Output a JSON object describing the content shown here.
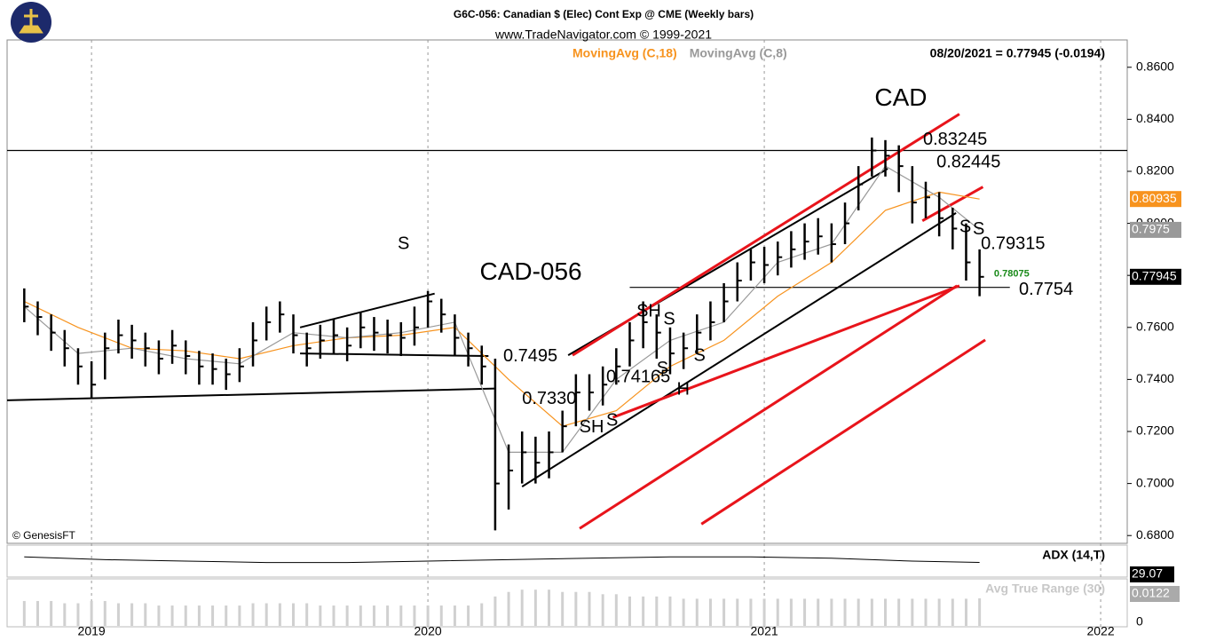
{
  "chart_data": {
    "type": "ohlc",
    "title": "G6C-056:  Canadian $ (Elec) Cont Exp @ CME  (Weekly bars)",
    "subtitle": "www.TradeNavigator.com © 1999-2021",
    "info": "08/20/2021 = 0.77945 (-0.0194)",
    "credit": "© GenesisFT",
    "xlim": [
      2018.749,
      2022.079
    ],
    "xticks": [
      2019,
      2020,
      2021,
      2022
    ],
    "ylim": [
      0.677,
      0.8705
    ],
    "yticks": [
      {
        "value": 0.86,
        "label": "0.8600"
      },
      {
        "value": 0.84,
        "label": "0.8400"
      },
      {
        "value": 0.82,
        "label": "0.8200"
      },
      {
        "value": 0.8,
        "label": "0.8000"
      },
      {
        "value": 0.78,
        "label": "0.7800"
      },
      {
        "value": 0.76,
        "label": "0.7600"
      },
      {
        "value": 0.74,
        "label": "0.7400"
      },
      {
        "value": 0.72,
        "label": "0.7200"
      },
      {
        "value": 0.7,
        "label": "0.7000"
      },
      {
        "value": 0.68,
        "label": "0.6800"
      }
    ],
    "x": [
      2018.8,
      2018.84,
      2018.88,
      2018.92,
      2018.96,
      2019,
      2019.04,
      2019.08,
      2019.12,
      2019.16,
      2019.2,
      2019.24,
      2019.28,
      2019.32,
      2019.36,
      2019.4,
      2019.44,
      2019.48,
      2019.52,
      2019.56,
      2019.6,
      2019.64,
      2019.68,
      2019.72,
      2019.76,
      2019.8,
      2019.84,
      2019.88,
      2019.92,
      2019.96,
      2020,
      2020.04,
      2020.08,
      2020.12,
      2020.16,
      2020.2,
      2020.24,
      2020.28,
      2020.32,
      2020.36,
      2020.4,
      2020.44,
      2020.48,
      2020.52,
      2020.56,
      2020.6,
      2020.64,
      2020.68,
      2020.72,
      2020.76,
      2020.8,
      2020.84,
      2020.88,
      2020.92,
      2020.96,
      2021,
      2021.04,
      2021.08,
      2021.12,
      2021.16,
      2021.2,
      2021.24,
      2021.28,
      2021.32,
      2021.36,
      2021.4,
      2021.44,
      2021.48,
      2021.52,
      2021.56,
      2021.6,
      2021.64
    ],
    "highs": [
      0.775,
      0.77,
      0.765,
      0.759,
      0.752,
      0.747,
      0.758,
      0.763,
      0.761,
      0.758,
      0.755,
      0.759,
      0.755,
      0.751,
      0.75,
      0.748,
      0.752,
      0.762,
      0.768,
      0.77,
      0.765,
      0.758,
      0.761,
      0.763,
      0.76,
      0.766,
      0.764,
      0.763,
      0.762,
      0.768,
      0.774,
      0.771,
      0.765,
      0.758,
      0.753,
      0.748,
      0.715,
      0.72,
      0.718,
      0.72,
      0.728,
      0.742,
      0.742,
      0.745,
      0.752,
      0.762,
      0.77,
      0.765,
      0.76,
      0.758,
      0.765,
      0.77,
      0.777,
      0.785,
      0.79,
      0.791,
      0.793,
      0.797,
      0.8,
      0.802,
      0.8,
      0.808,
      0.822,
      0.833,
      0.832,
      0.83,
      0.822,
      0.816,
      0.812,
      0.806,
      0.8,
      0.79
    ],
    "lows": [
      0.762,
      0.757,
      0.751,
      0.745,
      0.738,
      0.733,
      0.74,
      0.75,
      0.748,
      0.745,
      0.742,
      0.746,
      0.742,
      0.738,
      0.738,
      0.736,
      0.739,
      0.745,
      0.755,
      0.758,
      0.75,
      0.745,
      0.748,
      0.75,
      0.747,
      0.752,
      0.751,
      0.75,
      0.749,
      0.753,
      0.76,
      0.758,
      0.749,
      0.745,
      0.738,
      0.682,
      0.69,
      0.7,
      0.7,
      0.702,
      0.712,
      0.722,
      0.728,
      0.73,
      0.738,
      0.745,
      0.752,
      0.748,
      0.742,
      0.744,
      0.75,
      0.755,
      0.762,
      0.77,
      0.778,
      0.777,
      0.78,
      0.783,
      0.786,
      0.788,
      0.785,
      0.792,
      0.805,
      0.818,
      0.818,
      0.812,
      0.8,
      0.802,
      0.795,
      0.79,
      0.778,
      0.772
    ],
    "closes": [
      0.768,
      0.764,
      0.758,
      0.752,
      0.745,
      0.738,
      0.752,
      0.757,
      0.755,
      0.752,
      0.748,
      0.753,
      0.749,
      0.745,
      0.744,
      0.742,
      0.745,
      0.755,
      0.762,
      0.765,
      0.757,
      0.752,
      0.755,
      0.757,
      0.753,
      0.76,
      0.758,
      0.757,
      0.756,
      0.76,
      0.77,
      0.765,
      0.756,
      0.752,
      0.745,
      0.7,
      0.705,
      0.712,
      0.708,
      0.712,
      0.722,
      0.735,
      0.735,
      0.738,
      0.745,
      0.755,
      0.762,
      0.758,
      0.75,
      0.752,
      0.758,
      0.762,
      0.77,
      0.778,
      0.785,
      0.784,
      0.787,
      0.79,
      0.793,
      0.795,
      0.792,
      0.8,
      0.815,
      0.828,
      0.826,
      0.822,
      0.808,
      0.81,
      0.802,
      0.798,
      0.785,
      0.77945
    ],
    "color": "#000000",
    "series": [
      {
        "name": "MovingAvg (C,18)",
        "color": "#f7931e",
        "x": [
          2018.8,
          2018.96,
          2019.12,
          2019.28,
          2019.44,
          2019.6,
          2019.76,
          2019.92,
          2020.08,
          2020.24,
          2020.4,
          2020.56,
          2020.72,
          2020.88,
          2021.04,
          2021.2,
          2021.36,
          2021.52,
          2021.64
        ],
        "values": [
          0.77,
          0.76,
          0.752,
          0.751,
          0.748,
          0.753,
          0.756,
          0.757,
          0.76,
          0.74,
          0.722,
          0.728,
          0.745,
          0.755,
          0.772,
          0.785,
          0.805,
          0.812,
          0.80935
        ]
      },
      {
        "name": "MovingAvg (C,8)",
        "color": "#999999",
        "x": [
          2018.8,
          2018.96,
          2019.12,
          2019.28,
          2019.44,
          2019.6,
          2019.76,
          2019.92,
          2020.08,
          2020.24,
          2020.4,
          2020.56,
          2020.72,
          2020.88,
          2021.04,
          2021.2,
          2021.36,
          2021.52,
          2021.64
        ],
        "values": [
          0.768,
          0.75,
          0.752,
          0.748,
          0.746,
          0.758,
          0.756,
          0.758,
          0.762,
          0.712,
          0.712,
          0.74,
          0.755,
          0.762,
          0.785,
          0.792,
          0.822,
          0.81,
          0.7975
        ]
      }
    ],
    "levels": [
      {
        "value": 0.828,
        "x": [
          2018.749,
          2022.079
        ],
        "color": "#000000"
      },
      {
        "value": 0.7754,
        "x": [
          2020.6,
          2021.73
        ],
        "color": "#000000"
      }
    ],
    "trendlines": [
      {
        "x": [
          2018.749,
          2020.2
        ],
        "y": [
          0.732,
          0.7365
        ],
        "color": "#000000"
      },
      {
        "x": [
          2019.62,
          2020.18
        ],
        "y": [
          0.75,
          0.749
        ],
        "color": "#000000"
      },
      {
        "x": [
          2019.62,
          2020.02
        ],
        "y": [
          0.76,
          0.773
        ],
        "color": "#000000"
      },
      {
        "x": [
          2020.28,
          2021.57
        ],
        "y": [
          0.6988,
          0.804
        ],
        "color": "#000000"
      },
      {
        "x": [
          2020.417,
          2021.367
        ],
        "y": [
          0.7493,
          0.821
        ],
        "color": "#000000"
      },
      {
        "x": [
          2020.43,
          2021.58
        ],
        "y": [
          0.7493,
          0.842
        ],
        "color": "#e8141b"
      },
      {
        "x": [
          2021.47,
          2021.65
        ],
        "y": [
          0.801,
          0.814
        ],
        "color": "#e8141b"
      },
      {
        "x": [
          2020.55,
          2021.58
        ],
        "y": [
          0.7254,
          0.776
        ],
        "color": "#e8141b"
      },
      {
        "x": [
          2020.451,
          2021.573
        ],
        "y": [
          0.6827,
          0.776
        ],
        "color": "#e8141b"
      },
      {
        "x": [
          2020.813,
          2021.657
        ],
        "y": [
          0.6844,
          0.7552
        ],
        "color": "#e8141b"
      }
    ],
    "big_labels": [
      {
        "text": "CAD",
        "x": 2021.406,
        "y": 0.8477
      },
      {
        "text": "CAD-056",
        "x": 2020.306,
        "y": 0.7808
      }
    ],
    "annotations": [
      {
        "text": "S",
        "x": 2019.91,
        "y": 0.792,
        "color": "#000000"
      },
      {
        "text": "0.83245",
        "x": 2021.472,
        "y": 0.832,
        "color": "#000000"
      },
      {
        "text": "0.82445",
        "x": 2021.512,
        "y": 0.8234,
        "color": "#000000"
      },
      {
        "text": "0.79315",
        "x": 2021.644,
        "y": 0.792,
        "color": "#000000"
      },
      {
        "text": "0.7754",
        "x": 2021.757,
        "y": 0.7743,
        "color": "#000000"
      },
      {
        "text": "0.7495",
        "x": 2020.224,
        "y": 0.7487,
        "color": "#000000"
      },
      {
        "text": "0.7330",
        "x": 2020.28,
        "y": 0.7323,
        "color": "#000000"
      },
      {
        "text": "0.74165",
        "x": 2020.53,
        "y": 0.7408,
        "color": "#000000"
      },
      {
        "text": "SH",
        "x": 2020.62,
        "y": 0.766,
        "color": "#000000"
      },
      {
        "text": "S",
        "x": 2020.7,
        "y": 0.763,
        "color": "#000000"
      },
      {
        "text": "S",
        "x": 2020.68,
        "y": 0.744,
        "color": "#000000"
      },
      {
        "text": "H",
        "x": 2020.74,
        "y": 0.736,
        "color": "#000000"
      },
      {
        "text": "S",
        "x": 2020.79,
        "y": 0.749,
        "color": "#000000"
      },
      {
        "text": "SH",
        "x": 2020.45,
        "y": 0.7215,
        "color": "#000000"
      },
      {
        "text": "S",
        "x": 2020.53,
        "y": 0.724,
        "color": "#000000"
      },
      {
        "text": "S",
        "x": 2021.58,
        "y": 0.7985,
        "color": "#000000"
      },
      {
        "text": "S",
        "x": 2021.62,
        "y": 0.7975,
        "color": "#000000"
      },
      {
        "text": "0.78075",
        "x": 2021.683,
        "y": 0.7805,
        "color": "#1a8a1a"
      }
    ],
    "adx": {
      "label": "ADX (14,T)",
      "ylim": [
        20,
        40
      ],
      "x": [
        2018.8,
        2019.04,
        2019.28,
        2019.52,
        2019.76,
        2020,
        2020.24,
        2020.48,
        2020.72,
        2020.96,
        2021.2,
        2021.44,
        2021.64
      ],
      "values": [
        33,
        31,
        30,
        29,
        29,
        30,
        31,
        32,
        33,
        33,
        32,
        30,
        29.07
      ]
    },
    "atr": {
      "label": "Avg True Range (30)",
      "ylim": [
        0,
        0.02
      ],
      "yticks": [
        0
      ],
      "values": [
        0.011,
        0.011,
        0.011,
        0.01,
        0.01,
        0.011,
        0.011,
        0.01,
        0.01,
        0.01,
        0.009,
        0.009,
        0.009,
        0.009,
        0.009,
        0.009,
        0.009,
        0.01,
        0.01,
        0.01,
        0.01,
        0.01,
        0.009,
        0.009,
        0.009,
        0.009,
        0.009,
        0.009,
        0.009,
        0.009,
        0.009,
        0.009,
        0.009,
        0.009,
        0.01,
        0.013,
        0.015,
        0.016,
        0.016,
        0.016,
        0.015,
        0.015,
        0.015,
        0.014,
        0.014,
        0.013,
        0.013,
        0.013,
        0.013,
        0.012,
        0.012,
        0.012,
        0.012,
        0.012,
        0.012,
        0.012,
        0.012,
        0.012,
        0.012,
        0.012,
        0.012,
        0.012,
        0.012,
        0.012,
        0.012,
        0.012,
        0.012,
        0.012,
        0.012,
        0.012,
        0.012,
        0.0122
      ]
    }
  }
}
